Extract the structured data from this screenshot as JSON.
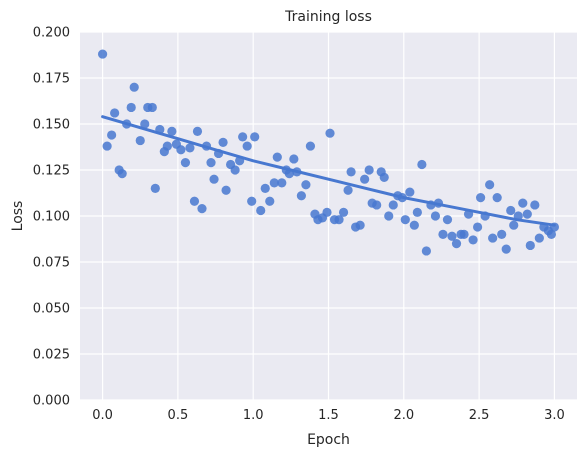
{
  "chart_data": {
    "type": "scatter",
    "title": "Training loss",
    "xlabel": "Epoch",
    "ylabel": "Loss",
    "xlim": [
      -0.15,
      3.15
    ],
    "ylim": [
      0.0,
      0.2
    ],
    "xticks": [
      0.0,
      0.5,
      1.0,
      1.5,
      2.0,
      2.5,
      3.0
    ],
    "xtick_labels": [
      "0.0",
      "0.5",
      "1.0",
      "1.5",
      "2.0",
      "2.5",
      "3.0"
    ],
    "yticks": [
      0.0,
      0.025,
      0.05,
      0.075,
      0.1,
      0.125,
      0.15,
      0.175,
      0.2
    ],
    "ytick_labels": [
      "0.000",
      "0.025",
      "0.050",
      "0.075",
      "0.100",
      "0.125",
      "0.150",
      "0.175",
      "0.200"
    ],
    "grid": true,
    "background": "#eaeaf2",
    "grid_color": "#ffffff",
    "point_color": "#4878d0",
    "line_color": "#4878d0",
    "series": [
      {
        "points": [
          [
            0.0,
            0.188
          ],
          [
            0.03,
            0.138
          ],
          [
            0.06,
            0.144
          ],
          [
            0.08,
            0.156
          ],
          [
            0.11,
            0.125
          ],
          [
            0.13,
            0.123
          ],
          [
            0.16,
            0.15
          ],
          [
            0.19,
            0.159
          ],
          [
            0.21,
            0.17
          ],
          [
            0.25,
            0.141
          ],
          [
            0.28,
            0.15
          ],
          [
            0.3,
            0.159
          ],
          [
            0.33,
            0.159
          ],
          [
            0.35,
            0.115
          ],
          [
            0.38,
            0.147
          ],
          [
            0.41,
            0.135
          ],
          [
            0.43,
            0.138
          ],
          [
            0.46,
            0.146
          ],
          [
            0.49,
            0.139
          ],
          [
            0.52,
            0.136
          ],
          [
            0.55,
            0.129
          ],
          [
            0.58,
            0.137
          ],
          [
            0.61,
            0.108
          ],
          [
            0.63,
            0.146
          ],
          [
            0.66,
            0.104
          ],
          [
            0.69,
            0.138
          ],
          [
            0.72,
            0.129
          ],
          [
            0.74,
            0.12
          ],
          [
            0.77,
            0.134
          ],
          [
            0.8,
            0.14
          ],
          [
            0.82,
            0.114
          ],
          [
            0.85,
            0.128
          ],
          [
            0.88,
            0.125
          ],
          [
            0.91,
            0.13
          ],
          [
            0.93,
            0.143
          ],
          [
            0.96,
            0.138
          ],
          [
            0.99,
            0.108
          ],
          [
            1.01,
            0.143
          ],
          [
            1.05,
            0.103
          ],
          [
            1.08,
            0.115
          ],
          [
            1.11,
            0.108
          ],
          [
            1.14,
            0.118
          ],
          [
            1.16,
            0.132
          ],
          [
            1.19,
            0.118
          ],
          [
            1.22,
            0.125
          ],
          [
            1.24,
            0.123
          ],
          [
            1.27,
            0.131
          ],
          [
            1.29,
            0.124
          ],
          [
            1.32,
            0.111
          ],
          [
            1.35,
            0.117
          ],
          [
            1.38,
            0.138
          ],
          [
            1.41,
            0.101
          ],
          [
            1.43,
            0.098
          ],
          [
            1.46,
            0.099
          ],
          [
            1.49,
            0.102
          ],
          [
            1.51,
            0.145
          ],
          [
            1.54,
            0.098
          ],
          [
            1.57,
            0.098
          ],
          [
            1.6,
            0.102
          ],
          [
            1.63,
            0.114
          ],
          [
            1.65,
            0.124
          ],
          [
            1.68,
            0.094
          ],
          [
            1.71,
            0.095
          ],
          [
            1.74,
            0.12
          ],
          [
            1.77,
            0.125
          ],
          [
            1.79,
            0.107
          ],
          [
            1.82,
            0.106
          ],
          [
            1.85,
            0.124
          ],
          [
            1.87,
            0.121
          ],
          [
            1.9,
            0.1
          ],
          [
            1.93,
            0.106
          ],
          [
            1.96,
            0.111
          ],
          [
            1.99,
            0.11
          ],
          [
            2.01,
            0.098
          ],
          [
            2.04,
            0.113
          ],
          [
            2.07,
            0.095
          ],
          [
            2.09,
            0.102
          ],
          [
            2.12,
            0.128
          ],
          [
            2.15,
            0.081
          ],
          [
            2.18,
            0.106
          ],
          [
            2.21,
            0.1
          ],
          [
            2.23,
            0.107
          ],
          [
            2.26,
            0.09
          ],
          [
            2.29,
            0.098
          ],
          [
            2.32,
            0.089
          ],
          [
            2.35,
            0.085
          ],
          [
            2.38,
            0.09
          ],
          [
            2.4,
            0.09
          ],
          [
            2.43,
            0.101
          ],
          [
            2.46,
            0.087
          ],
          [
            2.49,
            0.094
          ],
          [
            2.51,
            0.11
          ],
          [
            2.54,
            0.1
          ],
          [
            2.57,
            0.117
          ],
          [
            2.59,
            0.088
          ],
          [
            2.62,
            0.11
          ],
          [
            2.65,
            0.09
          ],
          [
            2.68,
            0.082
          ],
          [
            2.71,
            0.103
          ],
          [
            2.73,
            0.095
          ],
          [
            2.76,
            0.1
          ],
          [
            2.79,
            0.107
          ],
          [
            2.82,
            0.101
          ],
          [
            2.84,
            0.084
          ],
          [
            2.87,
            0.106
          ],
          [
            2.9,
            0.088
          ],
          [
            2.93,
            0.094
          ],
          [
            2.96,
            0.092
          ],
          [
            2.98,
            0.09
          ],
          [
            3.0,
            0.094
          ]
        ]
      }
    ],
    "trend_line": {
      "x": [
        0.0,
        0.25,
        0.5,
        0.75,
        1.0,
        1.25,
        1.5,
        1.75,
        2.0,
        2.25,
        2.5,
        2.75,
        3.0
      ],
      "y": [
        0.154,
        0.148,
        0.142,
        0.136,
        0.13,
        0.125,
        0.12,
        0.115,
        0.11,
        0.106,
        0.102,
        0.098,
        0.095
      ]
    }
  }
}
